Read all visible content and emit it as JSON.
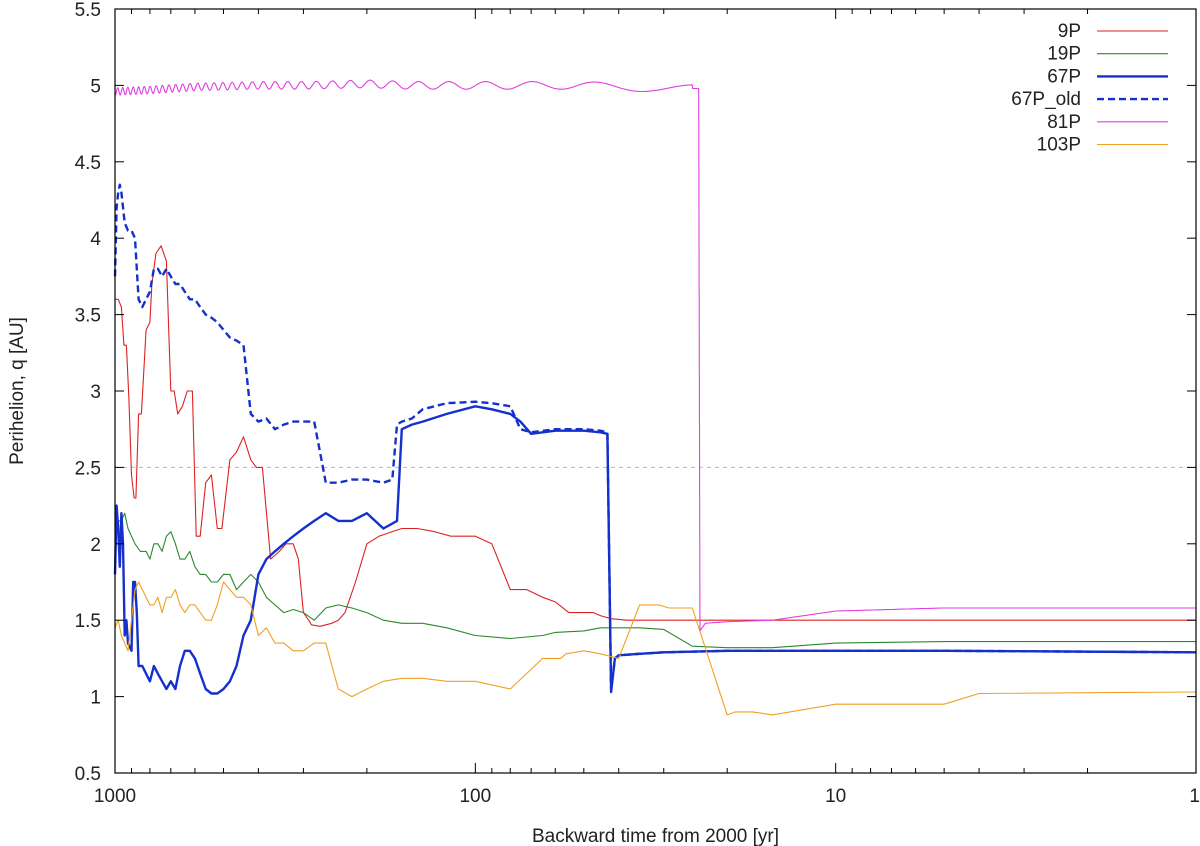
{
  "chart_data": {
    "type": "line",
    "xlabel": "Backward time from 2000 [yr]",
    "ylabel": "Perihelion, q [AU]",
    "xscale": "log",
    "x_reversed": true,
    "xlim": [
      1000,
      1
    ],
    "ylim": [
      0.5,
      5.5
    ],
    "x_ticks": [
      1000,
      100,
      10,
      1
    ],
    "x_tick_labels": [
      "1000",
      "100",
      "10",
      "1"
    ],
    "y_ticks": [
      0.5,
      1,
      1.5,
      2,
      2.5,
      3,
      3.5,
      4,
      4.5,
      5,
      5.5
    ],
    "y_tick_labels": [
      "0.5",
      "1",
      "1.5",
      "2",
      "2.5",
      "3",
      "3.5",
      "4",
      "4.5",
      "5",
      "5.5"
    ],
    "reference_line": {
      "y": 2.5,
      "style": "dashed",
      "color": "#bbbbbb"
    },
    "legend_position": "top-right",
    "series": [
      {
        "name": "9P",
        "color": "#dd2222",
        "dash": false,
        "width": 1.1,
        "x": [
          1000,
          980,
          960,
          945,
          930,
          915,
          900,
          885,
          875,
          860,
          845,
          820,
          800,
          790,
          770,
          745,
          720,
          700,
          685,
          670,
          650,
          630,
          610,
          595,
          580,
          560,
          540,
          520,
          505,
          480,
          460,
          440,
          420,
          405,
          390,
          370,
          350,
          335,
          320,
          310,
          300,
          290,
          285,
          270,
          250,
          240,
          230,
          215,
          200,
          185,
          170,
          160,
          145,
          130,
          117,
          112,
          100,
          90,
          80,
          72,
          65,
          60,
          55,
          50,
          47,
          45,
          42,
          38,
          30,
          20,
          10,
          5,
          1
        ],
        "y": [
          3.6,
          3.6,
          3.55,
          3.3,
          3.3,
          2.95,
          2.45,
          2.3,
          2.3,
          2.85,
          2.85,
          3.4,
          3.45,
          3.7,
          3.9,
          3.95,
          3.85,
          3.0,
          3.0,
          2.85,
          2.9,
          3.0,
          3.0,
          2.05,
          2.05,
          2.4,
          2.45,
          2.1,
          2.1,
          2.55,
          2.6,
          2.7,
          2.55,
          2.5,
          2.5,
          1.9,
          1.95,
          2.0,
          2.0,
          1.9,
          1.55,
          1.5,
          1.47,
          1.46,
          1.48,
          1.5,
          1.55,
          1.75,
          2.0,
          2.05,
          2.08,
          2.1,
          2.1,
          2.08,
          2.05,
          2.05,
          2.05,
          2.0,
          1.7,
          1.7,
          1.65,
          1.62,
          1.55,
          1.55,
          1.55,
          1.53,
          1.51,
          1.5,
          1.5,
          1.5,
          1.5,
          1.5,
          1.5
        ]
      },
      {
        "name": "19P",
        "color": "#2a8a2a",
        "dash": false,
        "width": 1.1,
        "x": [
          1000,
          980,
          960,
          940,
          920,
          900,
          880,
          850,
          820,
          800,
          780,
          760,
          740,
          720,
          700,
          680,
          660,
          640,
          620,
          600,
          580,
          560,
          540,
          520,
          500,
          480,
          460,
          440,
          420,
          400,
          380,
          360,
          340,
          320,
          300,
          280,
          260,
          240,
          220,
          200,
          180,
          160,
          140,
          120,
          100,
          80,
          65,
          60,
          50,
          45,
          40,
          35,
          30,
          25,
          20,
          15,
          10,
          5,
          1
        ],
        "y": [
          2.1,
          2.15,
          2.15,
          2.2,
          2.1,
          2.05,
          2.0,
          1.95,
          1.95,
          1.9,
          2.0,
          2.0,
          1.95,
          2.05,
          2.08,
          2.0,
          1.9,
          1.9,
          1.95,
          1.85,
          1.8,
          1.8,
          1.75,
          1.75,
          1.8,
          1.8,
          1.7,
          1.75,
          1.8,
          1.75,
          1.65,
          1.6,
          1.55,
          1.57,
          1.55,
          1.5,
          1.58,
          1.6,
          1.58,
          1.55,
          1.5,
          1.48,
          1.48,
          1.45,
          1.4,
          1.38,
          1.4,
          1.42,
          1.43,
          1.45,
          1.45,
          1.45,
          1.44,
          1.33,
          1.32,
          1.32,
          1.35,
          1.36,
          1.36
        ]
      },
      {
        "name": "67P",
        "color": "#1530cc",
        "dash": false,
        "width": 2.4,
        "x": [
          1000,
          990,
          980,
          970,
          960,
          950,
          940,
          930,
          920,
          900,
          890,
          880,
          870,
          860,
          840,
          820,
          800,
          780,
          760,
          740,
          720,
          700,
          680,
          660,
          640,
          620,
          600,
          580,
          560,
          540,
          520,
          500,
          480,
          460,
          440,
          420,
          400,
          380,
          360,
          340,
          320,
          300,
          280,
          260,
          240,
          220,
          200,
          180,
          165,
          160,
          150,
          140,
          120,
          100,
          90,
          80,
          75,
          70,
          60,
          50,
          45,
          43,
          42,
          41,
          40,
          35,
          30,
          20,
          10,
          5,
          1
        ],
        "y": [
          1.8,
          2.25,
          2.1,
          1.85,
          2.2,
          2.0,
          1.4,
          1.5,
          1.35,
          1.3,
          1.75,
          1.75,
          1.55,
          1.2,
          1.2,
          1.15,
          1.1,
          1.2,
          1.15,
          1.1,
          1.05,
          1.1,
          1.05,
          1.2,
          1.3,
          1.3,
          1.25,
          1.15,
          1.05,
          1.02,
          1.02,
          1.05,
          1.1,
          1.2,
          1.4,
          1.5,
          1.8,
          1.9,
          1.95,
          2.0,
          2.05,
          2.1,
          2.15,
          2.2,
          2.15,
          2.15,
          2.2,
          2.1,
          2.15,
          2.75,
          2.78,
          2.8,
          2.85,
          2.9,
          2.88,
          2.85,
          2.8,
          2.72,
          2.74,
          2.74,
          2.73,
          2.72,
          1.03,
          1.25,
          1.27,
          1.28,
          1.29,
          1.3,
          1.3,
          1.3,
          1.29
        ]
      },
      {
        "name": "67P_old",
        "color": "#1530cc",
        "dash": true,
        "width": 2.4,
        "x": [
          1000,
          990,
          980,
          970,
          960,
          940,
          920,
          900,
          880,
          860,
          840,
          820,
          800,
          780,
          760,
          740,
          720,
          700,
          680,
          660,
          640,
          620,
          600,
          580,
          560,
          540,
          520,
          500,
          480,
          460,
          440,
          420,
          400,
          380,
          360,
          340,
          320,
          300,
          280,
          260,
          240,
          220,
          200,
          180,
          170,
          165,
          160,
          150,
          140,
          120,
          100,
          90,
          80,
          75,
          70,
          60,
          50,
          45,
          43,
          42,
          41,
          40,
          35,
          30,
          20,
          10,
          5,
          1
        ],
        "y": [
          3.75,
          4.2,
          4.3,
          4.35,
          4.3,
          4.1,
          4.05,
          4.05,
          4.0,
          3.6,
          3.55,
          3.6,
          3.65,
          3.8,
          3.8,
          3.75,
          3.8,
          3.75,
          3.7,
          3.7,
          3.65,
          3.6,
          3.6,
          3.55,
          3.5,
          3.48,
          3.45,
          3.4,
          3.35,
          3.33,
          3.3,
          2.85,
          2.8,
          2.82,
          2.75,
          2.78,
          2.8,
          2.8,
          2.8,
          2.4,
          2.4,
          2.42,
          2.42,
          2.4,
          2.42,
          2.78,
          2.8,
          2.82,
          2.88,
          2.92,
          2.93,
          2.92,
          2.9,
          2.75,
          2.73,
          2.75,
          2.75,
          2.74,
          2.73,
          1.05,
          1.25,
          1.27,
          1.28,
          1.29,
          1.3,
          1.3,
          1.3,
          1.29
        ]
      },
      {
        "name": "81P",
        "color": "#e040e0",
        "dash": false,
        "width": 1.1,
        "x": [
          1000,
          800,
          600,
          400,
          300,
          200,
          150,
          100,
          80,
          60,
          50,
          40,
          30,
          27,
          24,
          23.8,
          23,
          20,
          15,
          10,
          5,
          1
        ],
        "y": [
          4.96,
          4.97,
          4.99,
          5.0,
          5.0,
          5.01,
          5.0,
          5.0,
          5.0,
          5.0,
          5.0,
          4.99,
          4.98,
          4.98,
          4.98,
          1.43,
          1.48,
          1.49,
          1.5,
          1.56,
          1.58,
          1.58
        ],
        "oscillation": true
      },
      {
        "name": "103P",
        "color": "#f0a020",
        "dash": false,
        "width": 1.1,
        "x": [
          1000,
          980,
          960,
          940,
          920,
          900,
          880,
          860,
          840,
          820,
          800,
          780,
          760,
          740,
          720,
          700,
          680,
          660,
          640,
          620,
          600,
          580,
          560,
          540,
          520,
          500,
          480,
          460,
          440,
          420,
          400,
          380,
          360,
          340,
          320,
          300,
          280,
          260,
          240,
          220,
          200,
          180,
          160,
          140,
          120,
          100,
          80,
          65,
          58,
          56,
          50,
          45,
          40,
          35,
          32,
          31,
          29,
          25,
          20,
          19,
          17,
          15,
          10,
          7,
          5,
          4,
          1
        ],
        "y": [
          1.45,
          1.5,
          1.4,
          1.35,
          1.3,
          1.5,
          1.7,
          1.75,
          1.7,
          1.65,
          1.6,
          1.6,
          1.65,
          1.55,
          1.65,
          1.65,
          1.7,
          1.6,
          1.55,
          1.6,
          1.6,
          1.55,
          1.5,
          1.5,
          1.6,
          1.75,
          1.7,
          1.65,
          1.65,
          1.6,
          1.4,
          1.45,
          1.35,
          1.35,
          1.3,
          1.3,
          1.35,
          1.35,
          1.05,
          1.0,
          1.05,
          1.1,
          1.12,
          1.12,
          1.1,
          1.1,
          1.05,
          1.25,
          1.25,
          1.28,
          1.3,
          1.28,
          1.25,
          1.6,
          1.6,
          1.6,
          1.58,
          1.58,
          0.88,
          0.9,
          0.9,
          0.88,
          0.95,
          0.95,
          0.95,
          1.02,
          1.03
        ]
      }
    ]
  }
}
